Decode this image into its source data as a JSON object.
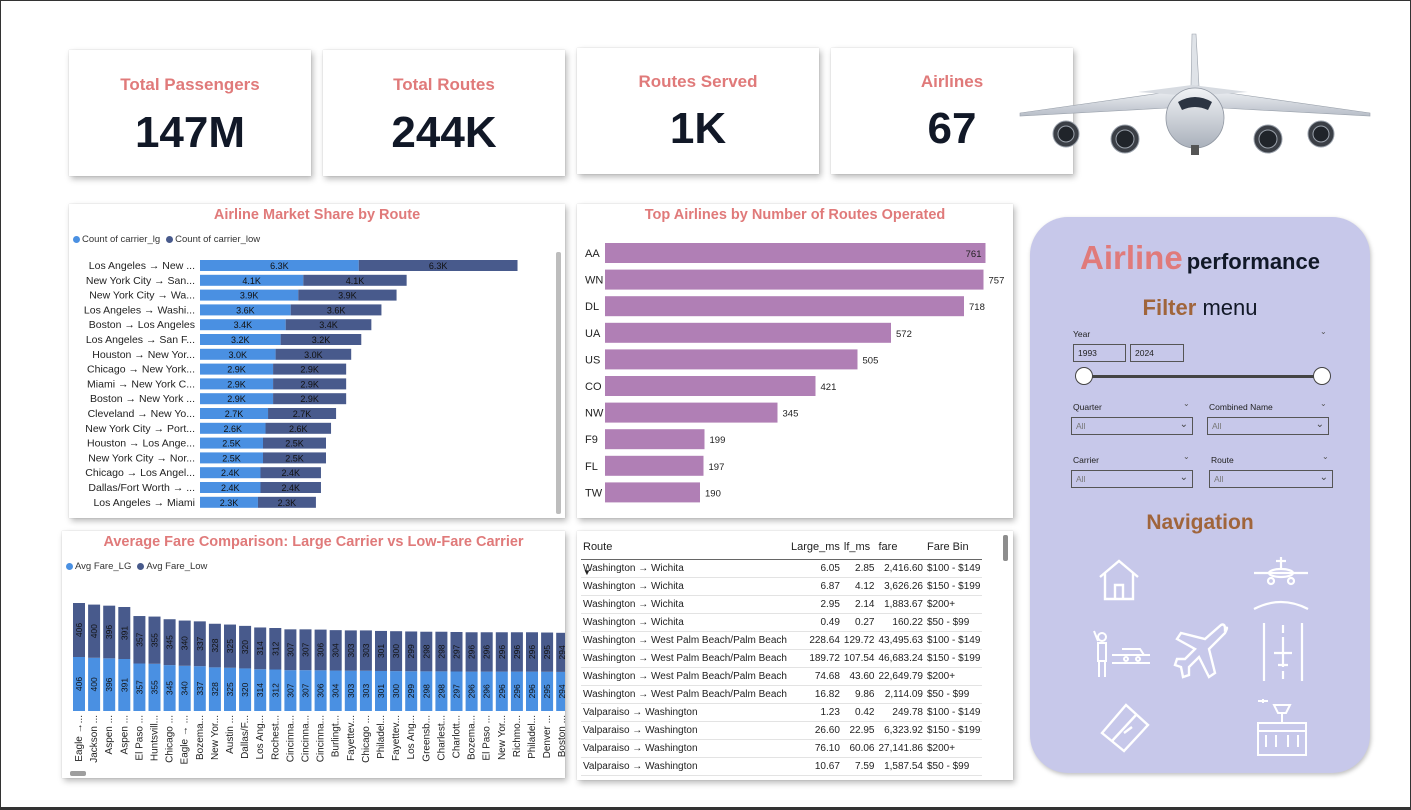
{
  "kpis": [
    {
      "title": "Total Passengers",
      "value": "147M"
    },
    {
      "title": "Total Routes",
      "value": "244K"
    },
    {
      "title": "Routes Served",
      "value": "1K"
    },
    {
      "title": "Airlines",
      "value": "67"
    }
  ],
  "colors": {
    "accent": "#e07a7a",
    "brown": "#a0653b",
    "dark": "#111827",
    "series_lg": "#4a90e2",
    "series_low": "#485a8c",
    "purple_bar": "#b07fb5",
    "panel_bg": "#c7c8ea"
  },
  "market_share": {
    "title": "Airline Market Share by Route",
    "legend": [
      "Count of carrier_lg",
      "Count of carrier_low"
    ],
    "chart_data": {
      "type": "bar",
      "orientation": "horizontal",
      "stacked": true,
      "categories": [
        "Los Angeles → New ...",
        "New York City → San...",
        "New York City → Wa...",
        "Los Angeles → Washi...",
        "Boston → Los Angeles",
        "Los Angeles → San F...",
        "Houston → New Yor...",
        "Chicago → New York...",
        "Miami → New York C...",
        "Boston → New York ...",
        "Cleveland → New Yo...",
        "New York City → Port...",
        "Houston → Los Ange...",
        "New York City → Nor...",
        "Chicago → Los Angel...",
        "Dallas/Fort Worth → ...",
        "Los Angeles → Miami"
      ],
      "series": [
        {
          "name": "Count of carrier_lg",
          "values": [
            6.3,
            4.1,
            3.9,
            3.6,
            3.4,
            3.2,
            3.0,
            2.9,
            2.9,
            2.9,
            2.7,
            2.6,
            2.5,
            2.5,
            2.4,
            2.4,
            2.3
          ]
        },
        {
          "name": "Count of carrier_low",
          "values": [
            6.3,
            4.1,
            3.9,
            3.6,
            3.4,
            3.2,
            3.0,
            2.9,
            2.9,
            2.9,
            2.7,
            2.6,
            2.5,
            2.5,
            2.4,
            2.4,
            2.3
          ]
        }
      ],
      "labels_lg": [
        "6.3K",
        "4.1K",
        "3.9K",
        "3.6K",
        "3.4K",
        "3.2K",
        "3.0K",
        "2.9K",
        "2.9K",
        "2.9K",
        "2.7K",
        "2.6K",
        "2.5K",
        "2.5K",
        "2.4K",
        "2.4K",
        "2.3K"
      ],
      "labels_low": [
        "6.3K",
        "4.1K",
        "3.9K",
        "3.6K",
        "3.4K",
        "3.2K",
        "3.0K",
        "2.9K",
        "2.9K",
        "2.9K",
        "2.7K",
        "2.6K",
        "2.5K",
        "2.5K",
        "2.4K",
        "2.4K",
        "2.3K"
      ],
      "unit": "K",
      "legend_position": "top-left"
    }
  },
  "top_airlines": {
    "title": "Top Airlines by Number of Routes Operated",
    "chart_data": {
      "type": "bar",
      "orientation": "horizontal",
      "categories": [
        "AA",
        "WN",
        "DL",
        "UA",
        "US",
        "CO",
        "NW",
        "F9",
        "FL",
        "TW"
      ],
      "values": [
        761,
        757,
        718,
        572,
        505,
        421,
        345,
        199,
        197,
        190
      ]
    }
  },
  "avg_fare": {
    "title": "Average Fare Comparison: Large Carrier vs Low-Fare Carrier",
    "legend": [
      "Avg Fare_LG",
      "Avg Fare_Low"
    ],
    "chart_data": {
      "type": "bar",
      "orientation": "vertical",
      "stacked": true,
      "categories": [
        "Eagle →...",
        "Jackson ...",
        "Aspen ...",
        "Aspen ...",
        "El Paso ...",
        "Huntsvill...",
        "Chicago ...",
        "Eagle → ...",
        "Bozema...",
        "New Yor...",
        "Austin ...",
        "Dallas/F...",
        "Los Ang...",
        "Rochest...",
        "Cincinna...",
        "Cincinna...",
        "Cincinna...",
        "Burlingt...",
        "Fayettev...",
        "Chicago ...",
        "Philadel...",
        "Fayettev...",
        "Los Ang...",
        "Greensb...",
        "Charlest...",
        "Charlott...",
        "Bozema...",
        "El Paso ...",
        "New Yor...",
        "Richmo...",
        "Philadel...",
        "Denver ...",
        "Boston ..."
      ],
      "series": [
        {
          "name": "Avg Fare_LG",
          "values": [
            406,
            400,
            396,
            391,
            357,
            355,
            345,
            340,
            337,
            328,
            325,
            320,
            314,
            312,
            307,
            307,
            306,
            304,
            303,
            303,
            301,
            300,
            299,
            298,
            298,
            297,
            296,
            296,
            296,
            296,
            296,
            295,
            294
          ]
        },
        {
          "name": "Avg Fare_Low",
          "values": [
            406,
            400,
            396,
            391,
            357,
            355,
            345,
            340,
            337,
            328,
            325,
            320,
            314,
            312,
            307,
            307,
            306,
            304,
            303,
            303,
            301,
            300,
            299,
            298,
            298,
            297,
            296,
            296,
            296,
            296,
            296,
            295,
            294
          ]
        }
      ],
      "legend_position": "top-left"
    }
  },
  "fare_table": {
    "columns": [
      "Route",
      "Large_ms",
      "lf_ms",
      "fare",
      "Fare Bin"
    ],
    "rows": [
      [
        "Washington → Wichita",
        "6.05",
        "2.85",
        "2,416.60",
        "$100 - $149"
      ],
      [
        "Washington → Wichita",
        "6.87",
        "4.12",
        "3,626.26",
        "$150 - $199"
      ],
      [
        "Washington → Wichita",
        "2.95",
        "2.14",
        "1,883.67",
        "$200+"
      ],
      [
        "Washington → Wichita",
        "0.49",
        "0.27",
        "160.22",
        "$50 - $99"
      ],
      [
        "Washington → West Palm Beach/Palm Beach",
        "228.64",
        "129.72",
        "43,495.63",
        "$100 - $149"
      ],
      [
        "Washington → West Palm Beach/Palm Beach",
        "189.72",
        "107.54",
        "46,683.24",
        "$150 - $199"
      ],
      [
        "Washington → West Palm Beach/Palm Beach",
        "74.68",
        "43.60",
        "22,649.79",
        "$200+"
      ],
      [
        "Washington → West Palm Beach/Palm Beach",
        "16.82",
        "9.86",
        "2,114.09",
        "$50 - $99"
      ],
      [
        "Valparaiso → Washington",
        "1.23",
        "0.42",
        "249.78",
        "$100 - $149"
      ],
      [
        "Valparaiso → Washington",
        "26.60",
        "22.95",
        "6,323.92",
        "$150 - $199"
      ],
      [
        "Valparaiso → Washington",
        "76.10",
        "60.06",
        "27,141.86",
        "$200+"
      ],
      [
        "Valparaiso → Washington",
        "10.67",
        "7.59",
        "1,587.54",
        "$50 - $99"
      ]
    ]
  },
  "panel": {
    "title_big": "Airline",
    "title_small": "performance",
    "filter_a": "Filter",
    "filter_b": "menu",
    "year_label": "Year",
    "year_from": "1993",
    "year_to": "2024",
    "year_slider": {
      "min": 1993,
      "max": 2024,
      "from": 1993,
      "to": 2024
    },
    "quarter_label": "Quarter",
    "quarter_value": "All",
    "combined_label": "Combined Name",
    "combined_value": "All",
    "carrier_label": "Carrier",
    "carrier_value": "All",
    "route_label": "Route",
    "route_value": "All",
    "nav_title": "Navigation",
    "nav_icons": [
      "home-icon",
      "plane-landing-icon",
      "traveler-icon",
      "airplane-icon",
      "runway-icon",
      "ticket-icon",
      "airport-tower-icon"
    ]
  }
}
